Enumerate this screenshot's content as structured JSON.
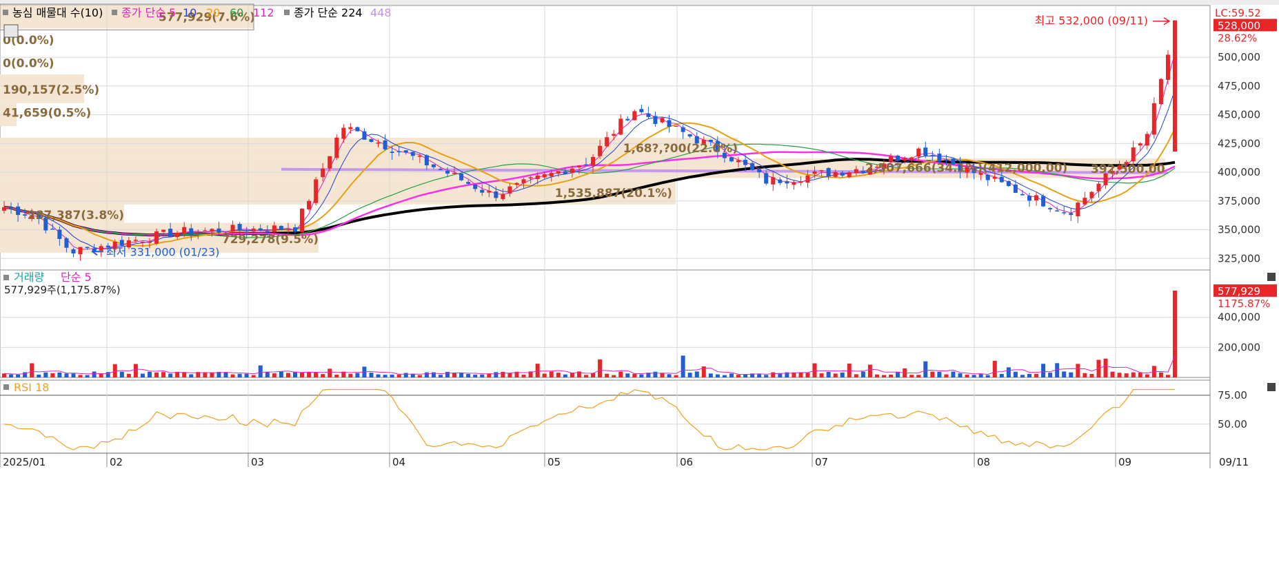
{
  "legend": {
    "price_panel_items": [
      {
        "text": "농심 매물대 수(10)",
        "color": "#000000"
      },
      {
        "text": "종가 단순 5",
        "color": "#e020c0"
      },
      {
        "text": "10",
        "color": "#1a40d8"
      },
      {
        "text": "20",
        "color": "#e8a010"
      },
      {
        "text": "60",
        "color": "#20a040"
      },
      {
        "text": "112",
        "color": "#e020c0"
      },
      {
        "text": "종가 단순 224",
        "color": "#000000"
      },
      {
        "text": "448",
        "color": "#c090f0"
      }
    ],
    "volume_panel_title": "거래량",
    "volume_panel_ma": "단순 5",
    "volume_readout": "577,929주(1,175.87%)",
    "rsi_panel_title": "RSI 18"
  },
  "readouts": {
    "lc": "LC:59.52",
    "last_price_badge": "528,000",
    "last_change_pct": "28.62%",
    "last_volume_badge": "577,929",
    "last_volume_pct": "1175.87%",
    "max_note": "최고 532,000 (09/11)",
    "min_note": "최저 331,000 (01/23)",
    "last_date_badge": "09/11"
  },
  "colors": {
    "up": "#e8262a",
    "down": "#1f5fd0",
    "ma5": "#e020c0",
    "ma10": "#1a40d8",
    "ma20": "#e8a010",
    "ma60": "#20a040",
    "ma112": "#ff2ee6",
    "ma224": "#000000",
    "ma448": "#c090f0",
    "volume_profile": "#f5e6d3",
    "profile_text": "#8a6a3a",
    "rsi": "#f0a020",
    "grid": "#d8d8d8"
  },
  "chart_data": [
    {
      "type": "candlestick",
      "name": "price",
      "ylim": [
        315000,
        545000
      ],
      "yticks": [
        325000,
        350000,
        375000,
        400000,
        425000,
        450000,
        475000,
        500000
      ],
      "ytick_labels": [
        "325,000",
        "350,000",
        "375,000",
        "400,000",
        "425,000",
        "450,000",
        "475,000",
        "500,000"
      ],
      "month_labels": [
        {
          "label": "2025/01",
          "month": "01"
        },
        {
          "label": "02",
          "month": "02"
        },
        {
          "label": "03",
          "month": "03"
        },
        {
          "label": "04",
          "month": "04"
        },
        {
          "label": "05",
          "month": "05"
        },
        {
          "label": "06",
          "month": "06"
        },
        {
          "label": "07",
          "month": "07"
        },
        {
          "label": "08",
          "month": "08"
        },
        {
          "label": "09",
          "month": "09"
        }
      ],
      "key_points": [
        {
          "month": "01",
          "close": 362000
        },
        {
          "month": "01",
          "close": 331000,
          "note": "low 01/23"
        },
        {
          "month": "02",
          "close": 348000
        },
        {
          "month": "03",
          "close": 352000
        },
        {
          "month": "03",
          "close": 440000
        },
        {
          "month": "04",
          "close": 402000
        },
        {
          "month": "04",
          "close": 380000
        },
        {
          "month": "05",
          "close": 410000
        },
        {
          "month": "05",
          "close": 455000
        },
        {
          "month": "06",
          "close": 418000
        },
        {
          "month": "06",
          "close": 392000
        },
        {
          "month": "07",
          "close": 404000
        },
        {
          "month": "07",
          "close": 420000
        },
        {
          "month": "08",
          "close": 382000
        },
        {
          "month": "08",
          "close": 365000
        },
        {
          "month": "09",
          "close": 428000
        },
        {
          "month": "09",
          "close": 528000,
          "high": 532000,
          "note": "high 09/11"
        }
      ],
      "volume_profile": [
        {
          "label": "577,929(7.6%)",
          "price_low": 525000,
          "price_high": 545000
        },
        {
          "label": "0(0.0%)",
          "price_low": 505000,
          "price_high": 525000
        },
        {
          "label": "0(0.0%)",
          "price_low": 485000,
          "price_high": 505000
        },
        {
          "label": "190,157(2.5%)",
          "price_low": 460000,
          "price_high": 485000
        },
        {
          "label": "41,659(0.5%)",
          "price_low": 440000,
          "price_high": 460000
        },
        {
          "label": "1,68?,?00(22.0%)",
          "price_low": 412000,
          "price_high": 430000
        },
        {
          "label": "2,507,666(34.1%)(412,000.00)",
          "price_low": 395000,
          "price_high": 412000
        },
        {
          "label": "1,535,887(20.1%)",
          "price_low": 372000,
          "price_high": 395000
        },
        {
          "label": "287,387(3.8%)",
          "price_low": 356000,
          "price_high": 372000
        },
        {
          "label": "729,278(9.5%)",
          "price_low": 330000,
          "price_high": 356000
        }
      ],
      "profile_price_note": "392,500.00"
    },
    {
      "type": "bar",
      "name": "volume",
      "ylim": [
        0,
        660000
      ],
      "yticks": [
        200000,
        400000
      ],
      "ytick_labels": [
        "200,000",
        "400,000"
      ],
      "last_value": 577929
    },
    {
      "type": "line",
      "name": "RSI 18",
      "ylim": [
        25,
        88
      ],
      "yticks": [
        50,
        75
      ],
      "ytick_labels": [
        "50.00",
        "75.00"
      ],
      "last_value": 80
    }
  ]
}
